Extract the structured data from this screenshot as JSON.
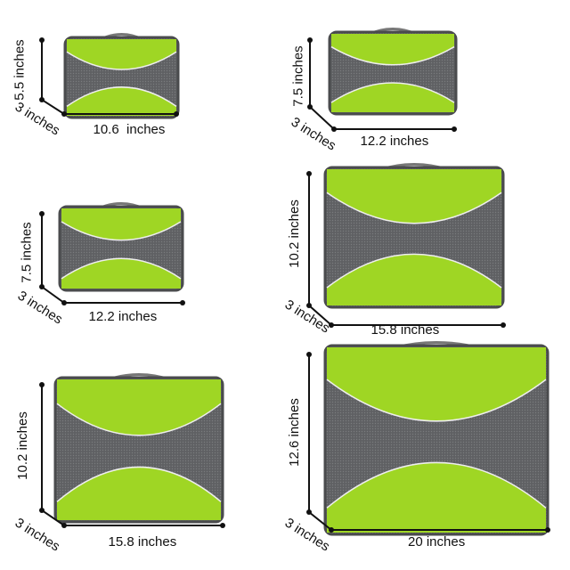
{
  "colors": {
    "bag_green": "#9fd624",
    "mesh_gray": "#5f6063",
    "trim": "#4a4b4d",
    "dimension_line": "#111111"
  },
  "cubes": [
    {
      "name": "cube-small-slim",
      "height": "5.5 inches",
      "depth": "3 inches",
      "width": "10.6  inches"
    },
    {
      "name": "cube-small",
      "height": "7.5 inches",
      "depth": "3 inches",
      "width": "12.2 inches"
    },
    {
      "name": "cube-small-2",
      "height": "7.5 inches",
      "depth": "3 inches",
      "width": "12.2 inches"
    },
    {
      "name": "cube-medium",
      "height": "10.2 inches",
      "depth": "3 inches",
      "width": "15.8 inches"
    },
    {
      "name": "cube-medium-2",
      "height": "10.2 inches",
      "depth": "3 inches",
      "width": "15.8 inches"
    },
    {
      "name": "cube-large",
      "height": "12.6 inches",
      "depth": "3 inches",
      "width": "20 inches"
    }
  ]
}
